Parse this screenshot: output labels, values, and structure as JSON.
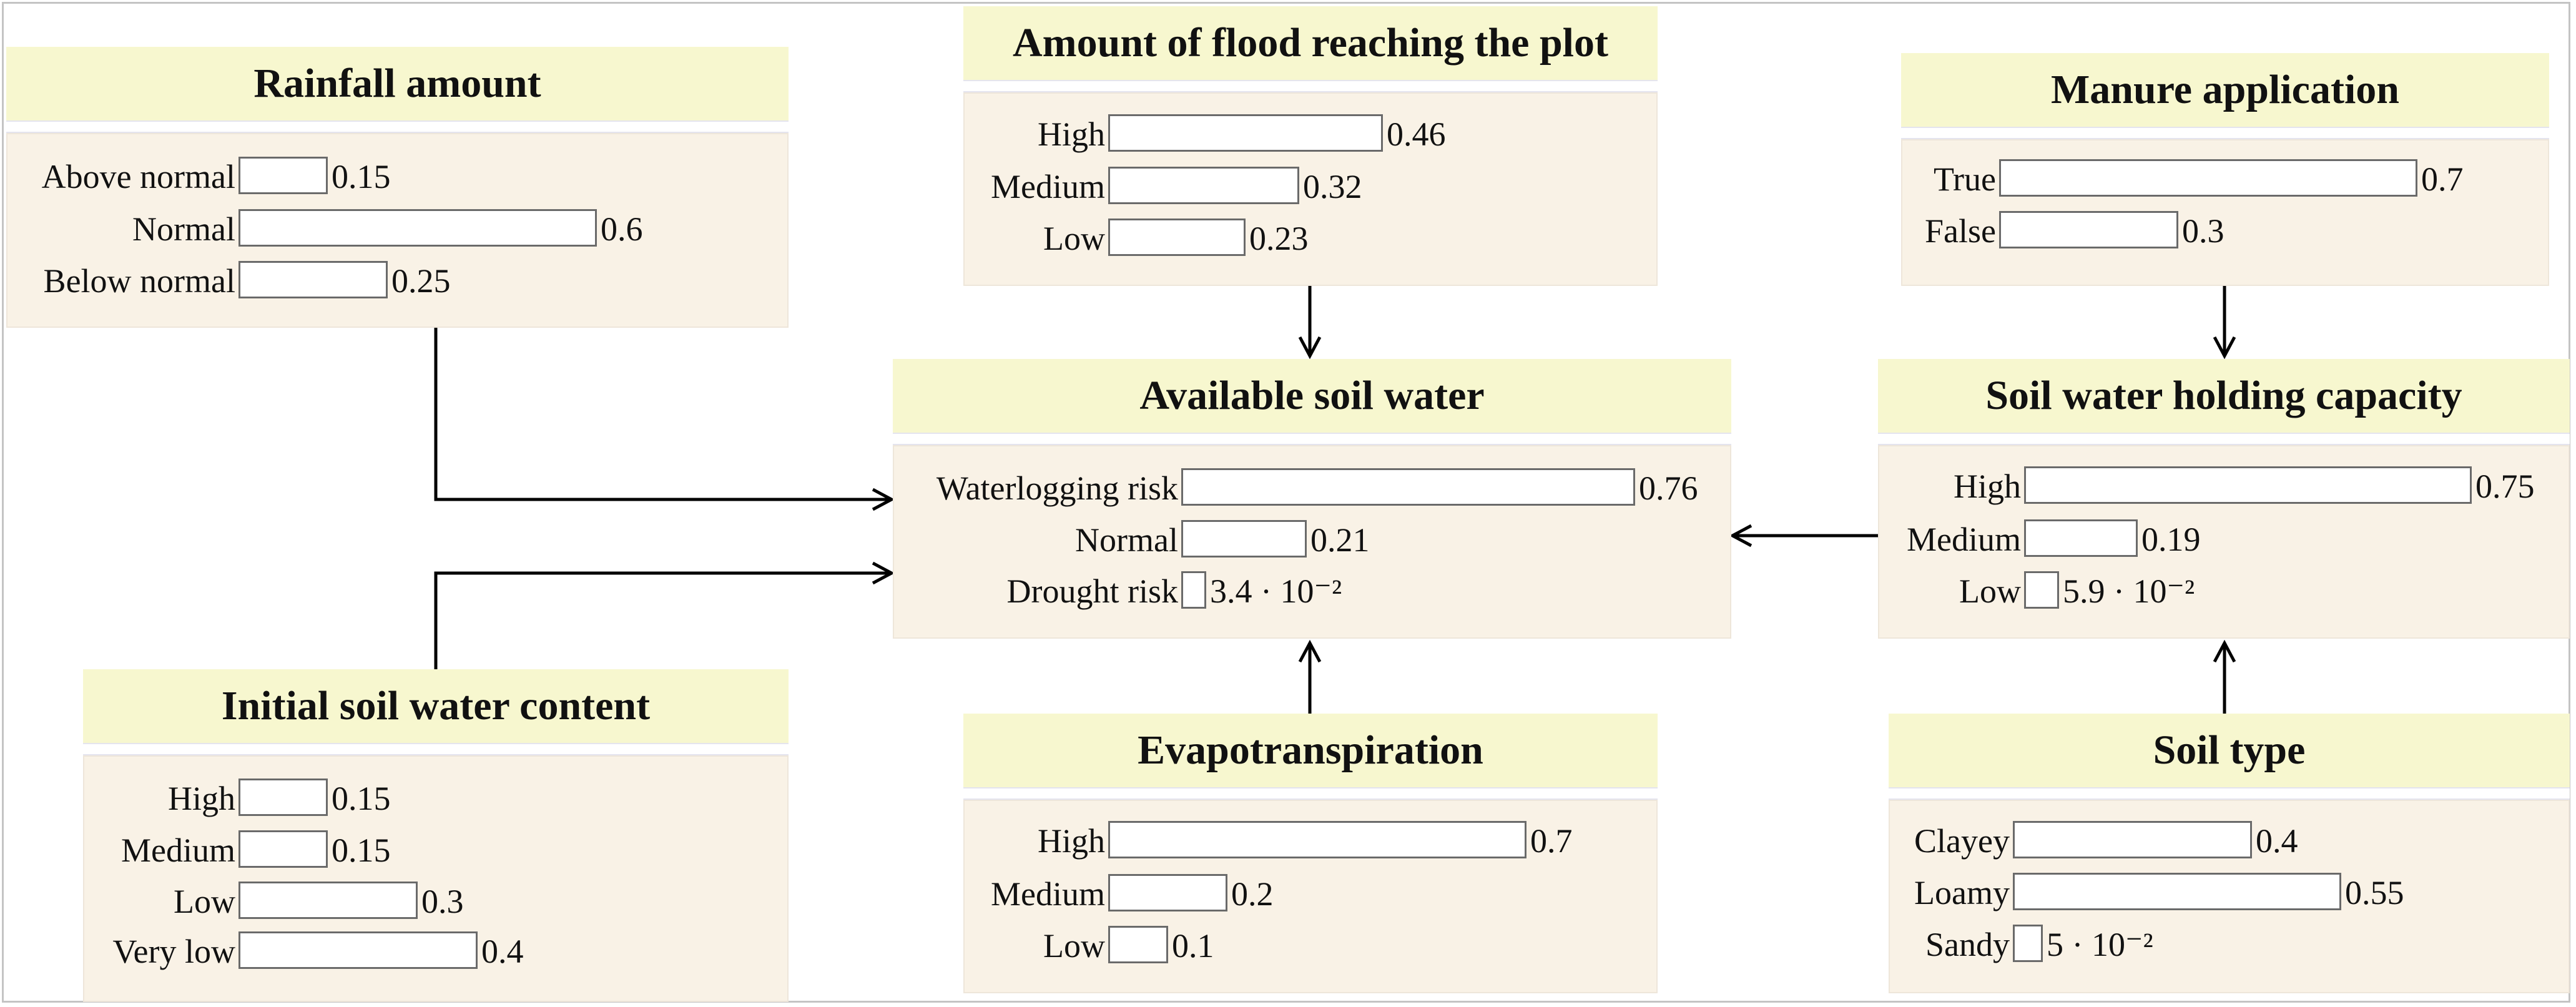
{
  "nodes": [
    {
      "id": "rainfall",
      "title": "Rainfall amount",
      "states": [
        {
          "label": "Above normal",
          "value": 0.15,
          "display": "0.15"
        },
        {
          "label": "Normal",
          "value": 0.6,
          "display": "0.6"
        },
        {
          "label": "Below normal",
          "value": 0.25,
          "display": "0.25"
        }
      ]
    },
    {
      "id": "flood",
      "title": "Amount of flood reaching the plot",
      "states": [
        {
          "label": "High",
          "value": 0.46,
          "display": "0.46"
        },
        {
          "label": "Medium",
          "value": 0.32,
          "display": "0.32"
        },
        {
          "label": "Low",
          "value": 0.23,
          "display": "0.23"
        }
      ]
    },
    {
      "id": "manure",
      "title": "Manure application",
      "states": [
        {
          "label": "True",
          "value": 0.7,
          "display": "0.7"
        },
        {
          "label": "False",
          "value": 0.3,
          "display": "0.3"
        }
      ]
    },
    {
      "id": "asw",
      "title": "Available soil water",
      "states": [
        {
          "label": "Waterlogging risk",
          "value": 0.76,
          "display": "0.76"
        },
        {
          "label": "Normal",
          "value": 0.21,
          "display": "0.21"
        },
        {
          "label": "Drought risk",
          "value": 0.034,
          "display": "3.4 · 10⁻²"
        }
      ]
    },
    {
      "id": "swhc",
      "title": "Soil water holding capacity",
      "states": [
        {
          "label": "High",
          "value": 0.75,
          "display": "0.75"
        },
        {
          "label": "Medium",
          "value": 0.19,
          "display": "0.19"
        },
        {
          "label": "Low",
          "value": 0.059,
          "display": "5.9 · 10⁻²"
        }
      ]
    },
    {
      "id": "iswc",
      "title": "Initial soil water content",
      "states": [
        {
          "label": "High",
          "value": 0.15,
          "display": "0.15"
        },
        {
          "label": "Medium",
          "value": 0.15,
          "display": "0.15"
        },
        {
          "label": "Low",
          "value": 0.3,
          "display": "0.3"
        },
        {
          "label": "Very low",
          "value": 0.4,
          "display": "0.4"
        }
      ]
    },
    {
      "id": "evapo",
      "title": "Evapotranspiration",
      "states": [
        {
          "label": "High",
          "value": 0.7,
          "display": "0.7"
        },
        {
          "label": "Medium",
          "value": 0.2,
          "display": "0.2"
        },
        {
          "label": "Low",
          "value": 0.1,
          "display": "0.1"
        }
      ]
    },
    {
      "id": "soiltype",
      "title": "Soil type",
      "states": [
        {
          "label": "Clayey",
          "value": 0.4,
          "display": "0.4"
        },
        {
          "label": "Loamy",
          "value": 0.55,
          "display": "0.55"
        },
        {
          "label": "Sandy",
          "value": 0.05,
          "display": "5 · 10⁻²"
        }
      ]
    }
  ],
  "edges": [
    {
      "from": "rainfall",
      "to": "asw"
    },
    {
      "from": "iswc",
      "to": "asw"
    },
    {
      "from": "flood",
      "to": "asw"
    },
    {
      "from": "evapo",
      "to": "asw"
    },
    {
      "from": "swhc",
      "to": "asw"
    },
    {
      "from": "manure",
      "to": "swhc"
    },
    {
      "from": "soiltype",
      "to": "swhc"
    }
  ]
}
